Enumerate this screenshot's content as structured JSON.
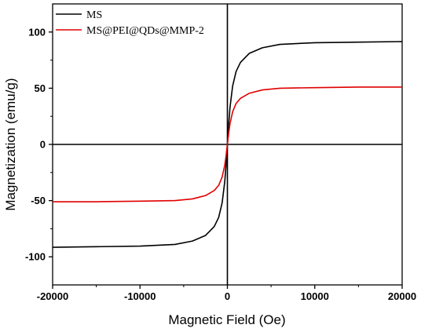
{
  "chart_data": {
    "type": "line",
    "title": "",
    "xlabel": "Magnetic Field (Oe)",
    "ylabel": "Magnetization (emu/g)",
    "xlim": [
      -20000,
      20000
    ],
    "ylim": [
      -125,
      125
    ],
    "x_ticks": [
      -20000,
      -10000,
      0,
      10000,
      20000
    ],
    "y_ticks": [
      -100,
      -50,
      0,
      50,
      100
    ],
    "grid": false,
    "legend_position": "top-left",
    "zero_lines": true,
    "series": [
      {
        "name": "MS",
        "color": "#000000",
        "x": [
          -20000,
          -15000,
          -10000,
          -6000,
          -4000,
          -2500,
          -1500,
          -1000,
          -600,
          -300,
          -150,
          0,
          150,
          300,
          600,
          1000,
          1500,
          2500,
          4000,
          6000,
          10000,
          15000,
          20000
        ],
        "y": [
          -91.5,
          -91,
          -90.5,
          -89,
          -86,
          -81,
          -73,
          -65,
          -52,
          -33,
          -18,
          0,
          18,
          33,
          52,
          65,
          73,
          81,
          86,
          89,
          90.5,
          91,
          91.5
        ]
      },
      {
        "name": "MS@PEI@QDs@MMP-2",
        "color": "#e00000",
        "x": [
          -20000,
          -15000,
          -10000,
          -6000,
          -4000,
          -2500,
          -1500,
          -1000,
          -600,
          -300,
          -150,
          0,
          150,
          300,
          600,
          1000,
          1500,
          2500,
          4000,
          6000,
          10000,
          15000,
          20000
        ],
        "y": [
          -51,
          -51,
          -50.5,
          -50,
          -48.5,
          -45.5,
          -41,
          -36.5,
          -29,
          -18.5,
          -10,
          0,
          10,
          18.5,
          29,
          36.5,
          41,
          45.5,
          48.5,
          50,
          50.5,
          51,
          51
        ]
      }
    ]
  }
}
